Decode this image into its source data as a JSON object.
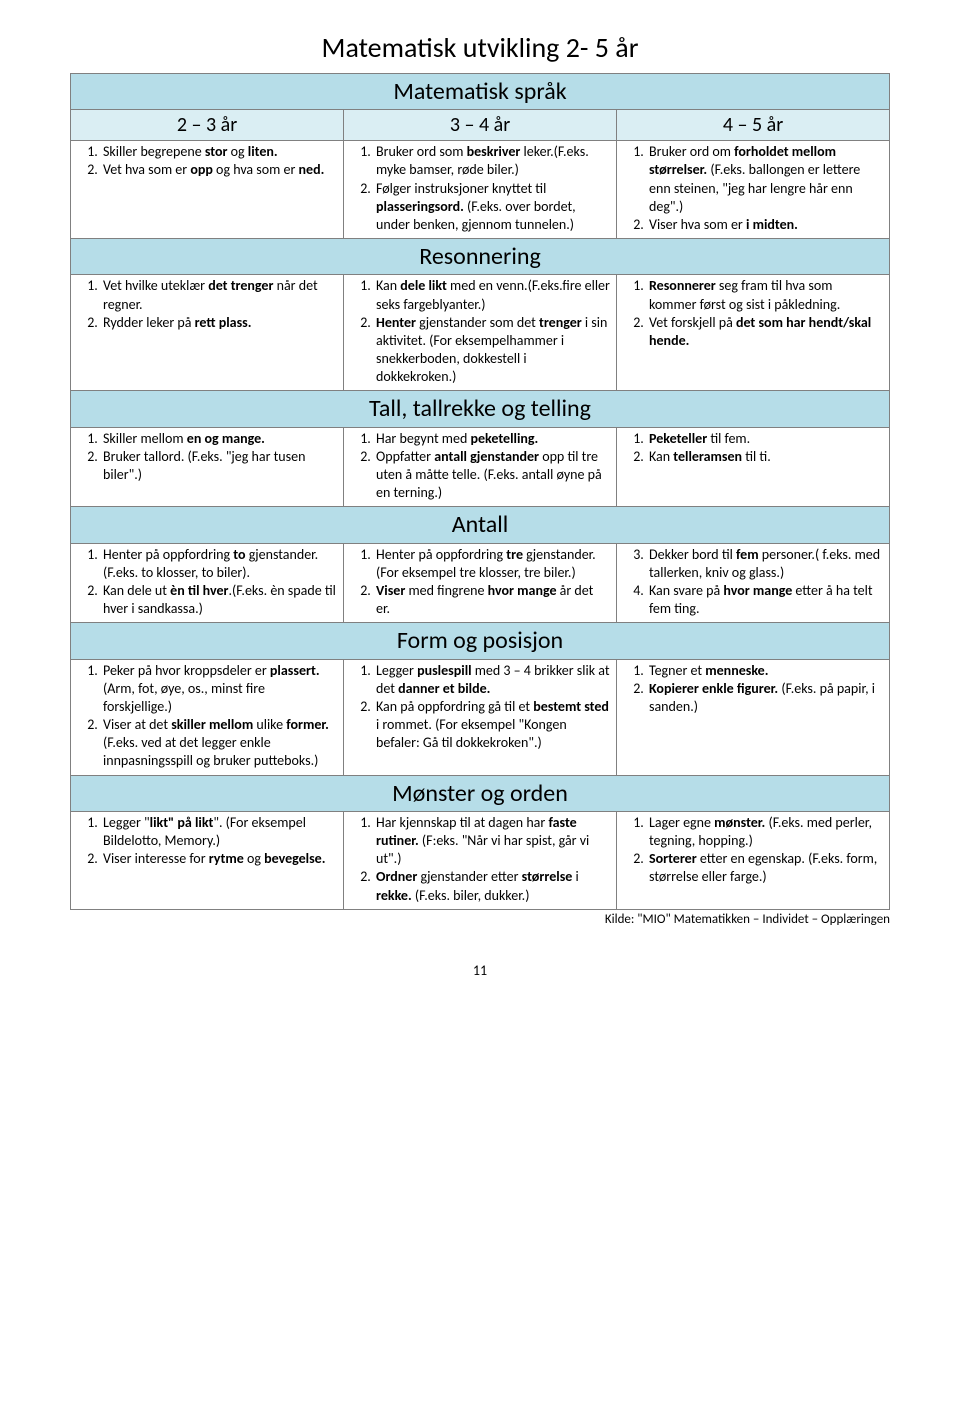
{
  "title": "Matematisk utvikling  2- 5 år",
  "sections": [
    {
      "name": "Matematisk språk",
      "hasAgeRow": true
    },
    {
      "name": "Resonnering"
    },
    {
      "name": "Tall, tallrekke og telling"
    },
    {
      "name": "Antall"
    },
    {
      "name": "Form og posisjon"
    },
    {
      "name": "Mønster og orden"
    }
  ],
  "ages": [
    "2 – 3 år",
    "3 – 4 år",
    "4 – 5 år"
  ],
  "rows": {
    "sprak": {
      "c1": [
        "Skiller begrepene <b>stor</b> og <b>liten.</b>",
        "Vet hva som er <b>opp</b> og hva som er <b>ned.</b>"
      ],
      "c2": [
        "Bruker ord som <b>beskriver</b> leker.(F.eks. myke bamser, røde biler.)",
        "Følger instruksjoner knyttet til <b>plasseringsord.</b> (F.eks. over bordet, under benken, gjennom tunnelen.)"
      ],
      "c3": [
        "Bruker ord om <b>forholdet mellom størrelser.</b> (F.eks. ballongen er lettere enn steinen, \"jeg har lengre hår enn deg\".)",
        "Viser hva som er <b>i midten.</b>"
      ]
    },
    "resonnering": {
      "c1": [
        "Vet hvilke uteklær <b>det trenger</b> når det regner.",
        "Rydder leker på <b>rett plass.</b>"
      ],
      "c2": [
        "Kan <b>dele likt</b> med en venn.(F.eks.fire eller seks fargeblyanter.)",
        "<b>Henter</b> gjenstander som det <b>trenger</b> i sin aktivitet. (For eksempelhammer i snekkerboden, dokkestell i dokkekroken.)"
      ],
      "c3": [
        "<b>Resonnerer</b> seg fram til hva som kommer først og sist i påkledning.",
        "Vet forskjell på <b>det som har hendt/skal hende.</b>"
      ]
    },
    "tall": {
      "c1": [
        "Skiller mellom <b>en og mange.</b>",
        "Bruker tallord. (F.eks. \"jeg har tusen biler\".)"
      ],
      "c2": [
        "Har begynt med <b>peketelling.</b>",
        "Oppfatter <b>antall gjenstander</b> opp til tre uten å måtte telle. (F.eks. antall øyne på en terning.)"
      ],
      "c3": [
        "<b>Peketeller</b> til fem.",
        "Kan <b>telleramsen</b> til ti."
      ]
    },
    "antall": {
      "c1": [
        "Henter på oppfordring <b>to</b> gjenstander. (F.eks. to klosser, to biler).",
        "Kan dele ut <b>èn til hver</b>.(F.eks. èn spade til hver i sandkassa.)"
      ],
      "c2": [
        "Henter på oppfordring <b>tre</b> gjenstander. (For eksempel tre klosser, tre biler.)",
        "<b>Viser</b> med fingrene <b>hvor mange</b> år det er."
      ],
      "c3": [
        "Dekker bord til <b>fem</b> personer.( f.eks. med tallerken, kniv og glass.)",
        "Kan svare på <b>hvor mange</b> etter å ha telt fem ting."
      ],
      "c3start": 3
    },
    "form": {
      "c1": [
        "Peker på hvor kroppsdeler er <b>plassert.</b> (Arm, fot, øye, os., minst fire forskjellige.)",
        "Viser at det <b>skiller mellom</b> ulike <b>former.</b> (F.eks. ved at det legger enkle innpasningsspill og bruker putteboks.)"
      ],
      "c2": [
        "Legger <b>puslespill</b> med 3 – 4 brikker slik at det <b>danner et bilde.</b>",
        "Kan på oppfordring gå til et <b>bestemt sted</b> i rommet. (For eksempel \"Kongen befaler: Gå til dokkekroken\".)"
      ],
      "c3": [
        "Tegner et <b>menneske.</b>",
        "<b>Kopierer enkle figurer.</b> (F.eks. på papir, i sanden.)"
      ]
    },
    "monster": {
      "c1": [
        "Legger \"<b>likt\" på likt</b>\". (For eksempel Bildelotto, Memory.)",
        "Viser interesse for <b>rytme</b> og <b>bevegelse.</b>"
      ],
      "c2": [
        "Har kjennskap til at dagen har <b>faste rutiner.</b> (F:eks. \"Når vi har spist, går vi ut\".)",
        "<b>Ordner</b> gjenstander etter <b>størrelse</b> i <b>rekke.</b> (F.eks. biler, dukker.)"
      ],
      "c3": [
        "Lager egne <b>mønster.</b> (F.eks. med perler, tegning, hopping.)",
        "<b>Sorterer</b> etter en egenskap. (F.eks. form, størrelse eller farge.)"
      ]
    }
  },
  "source": "Kilde: \"MIO\"   Matematikken – Individet – Opplæringen",
  "pageNum": "11",
  "colors": {
    "sectionBg": "#b6dde8",
    "ageBg": "#daeef3",
    "border": "#808080",
    "text": "#000000",
    "bg": "#ffffff"
  }
}
